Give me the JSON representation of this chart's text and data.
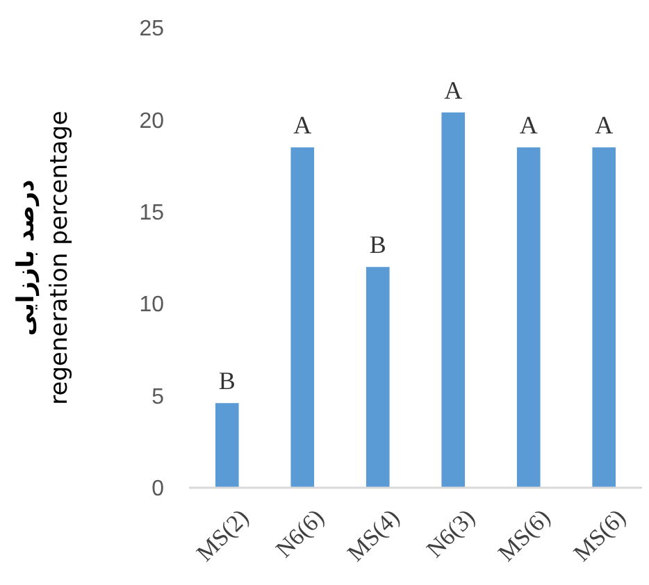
{
  "chart_data": {
    "type": "bar",
    "ylabel": "درصد باززایی\nregeneration percentage",
    "categories": [
      "MS(2)",
      "N6(6)",
      "MS(4)",
      "N6(3)",
      "MS(6)",
      "MS(6)"
    ],
    "values": [
      4.6,
      18.5,
      12.0,
      20.4,
      18.5,
      18.5
    ],
    "value_labels": [
      "B",
      "A",
      "B",
      "A",
      "A",
      "A"
    ],
    "color": "#5b9bd5",
    "ylim": [
      0,
      25
    ],
    "yticks": [
      0,
      5,
      10,
      15,
      20,
      25
    ],
    "grid": false
  }
}
